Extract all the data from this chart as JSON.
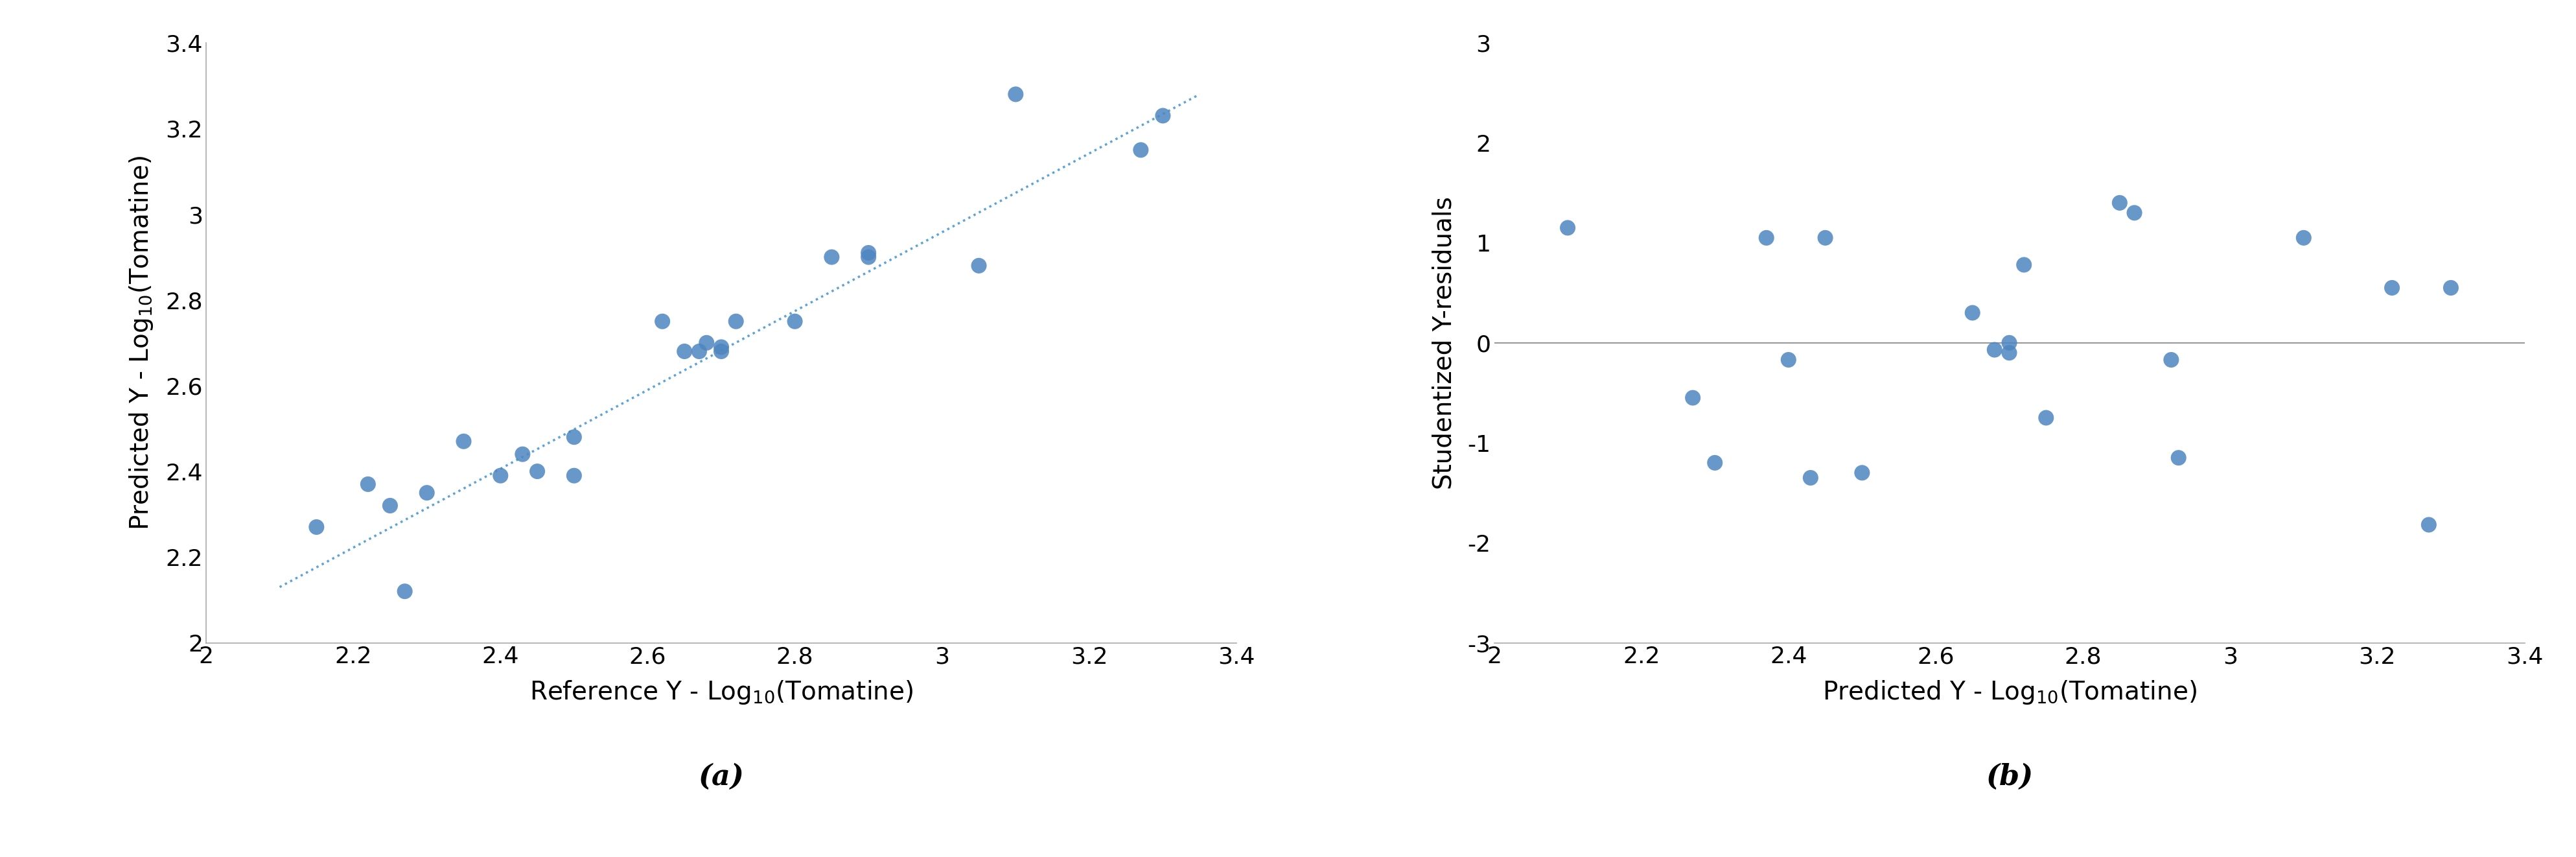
{
  "plot_a": {
    "scatter_x": [
      2.15,
      2.22,
      2.25,
      2.27,
      2.3,
      2.35,
      2.4,
      2.43,
      2.45,
      2.5,
      2.5,
      2.62,
      2.65,
      2.67,
      2.68,
      2.7,
      2.7,
      2.72,
      2.8,
      2.85,
      2.9,
      2.9,
      3.05,
      3.1,
      3.27,
      3.3
    ],
    "scatter_y": [
      2.27,
      2.37,
      2.32,
      2.12,
      2.35,
      2.47,
      2.39,
      2.44,
      2.4,
      2.39,
      2.48,
      2.75,
      2.68,
      2.68,
      2.7,
      2.68,
      2.69,
      2.75,
      2.75,
      2.9,
      2.91,
      2.9,
      2.88,
      3.28,
      3.15,
      3.23
    ],
    "trendline_x": [
      2.1,
      3.35
    ],
    "trendline_y": [
      2.13,
      3.28
    ],
    "xlabel": "Reference Y - Log$_{10}$(Tomatine)",
    "ylabel": "Predicted Y - Log$_{10}$(Tomatine)",
    "xlim": [
      2.0,
      3.4
    ],
    "ylim": [
      2.0,
      3.4
    ],
    "xticks": [
      2.0,
      2.2,
      2.4,
      2.6,
      2.8,
      3.0,
      3.2,
      3.4
    ],
    "yticks": [
      2.0,
      2.2,
      2.4,
      2.6,
      2.8,
      3.0,
      3.2,
      3.4
    ],
    "label": "(a)"
  },
  "plot_b": {
    "scatter_x": [
      2.1,
      2.27,
      2.3,
      2.37,
      2.4,
      2.43,
      2.45,
      2.5,
      2.65,
      2.68,
      2.7,
      2.7,
      2.72,
      2.75,
      2.85,
      2.87,
      2.92,
      2.93,
      3.1,
      3.22,
      3.27,
      3.3
    ],
    "scatter_y": [
      1.15,
      -0.55,
      -1.2,
      1.05,
      -0.17,
      -1.35,
      1.05,
      -1.3,
      0.3,
      -0.07,
      -0.1,
      0.0,
      0.78,
      -0.75,
      1.4,
      1.3,
      -0.17,
      -1.15,
      1.05,
      0.55,
      -1.82,
      0.55
    ],
    "hline_y": 0.0,
    "xlabel": "Predicted Y - Log$_{10}$(Tomatine)",
    "ylabel": "Studentized Y-residuals",
    "xlim": [
      2.0,
      3.4
    ],
    "ylim": [
      -3.0,
      3.0
    ],
    "xticks": [
      2.0,
      2.2,
      2.4,
      2.6,
      2.8,
      3.0,
      3.2,
      3.4
    ],
    "yticks": [
      -3,
      -2,
      -1,
      0,
      1,
      2,
      3
    ],
    "label": "(b)"
  },
  "scatter_color": "#4E86C0",
  "scatter_size": 300,
  "trendline_color": "#5BA3D9",
  "trendline_linewidth": 2.5,
  "hline_color": "#999999",
  "hline_linewidth": 1.5,
  "label_fontsize": 32,
  "tick_fontsize": 26,
  "axis_label_fontsize": 28,
  "figure_bg": "#ffffff",
  "spine_color": "#aaaaaa"
}
